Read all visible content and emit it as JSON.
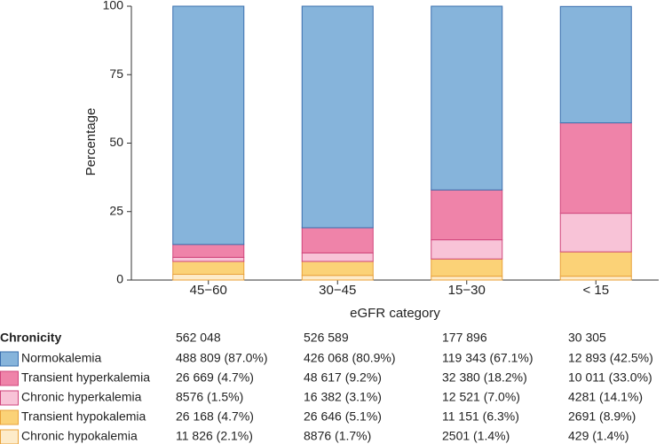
{
  "chart_data": {
    "type": "stacked_bar",
    "y_label": "Percentage",
    "x_label": "eGFR category",
    "categories": [
      "45−60",
      "30−45",
      "15−30",
      "< 15"
    ],
    "ylim": [
      0,
      100
    ],
    "yticks": [
      0,
      25,
      50,
      75,
      100
    ],
    "legend_title": "Chronicity",
    "category_totals": [
      "562 048",
      "526 589",
      "177 896",
      "30 305"
    ],
    "series": [
      {
        "name": "Normokalemia",
        "color": "#86b4db",
        "edge_color": "#3a6fae",
        "values": [
          87.0,
          80.9,
          67.1,
          42.5
        ],
        "value_labels": [
          "488 809 (87.0%)",
          "426 068 (80.9%)",
          "119 343 (67.1%)",
          "12 893 (42.5%)"
        ]
      },
      {
        "name": "Transient hyperkalemia",
        "color": "#ef83a9",
        "edge_color": "#d0467c",
        "values": [
          4.7,
          9.2,
          18.2,
          33.0
        ],
        "value_labels": [
          "26 669 (4.7%)",
          "48 617 (9.2%)",
          "32 380 (18.2%)",
          "10 011 (33.0%)"
        ]
      },
      {
        "name": "Chronic hyperkalemia",
        "color": "#f8c3d7",
        "edge_color": "#d0467c",
        "values": [
          1.5,
          3.1,
          7.0,
          14.1
        ],
        "value_labels": [
          "8576 (1.5%)",
          "16 382 (3.1%)",
          "12 521 (7.0%)",
          "4281 (14.1%)"
        ]
      },
      {
        "name": "Transient hypokalemia",
        "color": "#fbd277",
        "edge_color": "#e9a23a",
        "values": [
          4.7,
          5.1,
          6.3,
          8.9
        ],
        "value_labels": [
          "26 168 (4.7%)",
          "26 646 (5.1%)",
          "11 151 (6.3%)",
          "2691 (8.9%)"
        ]
      },
      {
        "name": "Chronic hypokalemia",
        "color": "#fdebc9",
        "edge_color": "#e9a23a",
        "values": [
          2.1,
          1.7,
          1.4,
          1.4
        ],
        "value_labels": [
          "11 826 (2.1%)",
          "8876 (1.7%)",
          "2501 (1.4%)",
          "429 (1.4%)"
        ]
      }
    ]
  }
}
